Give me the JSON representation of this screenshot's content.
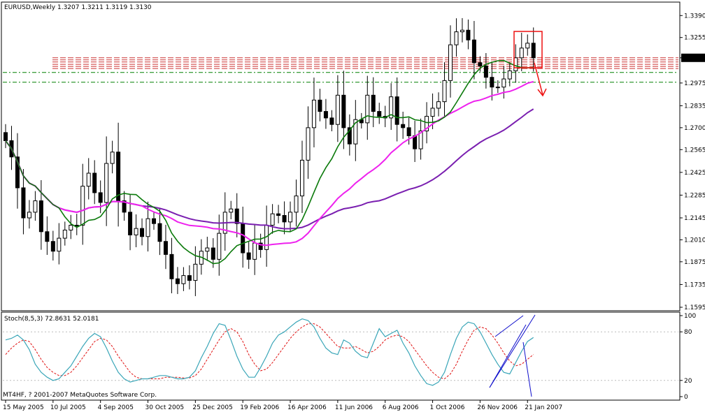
{
  "header": {
    "symbol_timeframe": "EURUSD,Weekly",
    "ohlc": "1.3207 1.3211 1.3119 1.3130"
  },
  "price_axis": {
    "ticks": [
      "1.3390",
      "1.3255",
      "1.3130",
      "1.2975",
      "1.2835",
      "1.2700",
      "1.2565",
      "1.2425",
      "1.2285",
      "1.2145",
      "1.2010",
      "1.1875",
      "1.1735",
      "1.1595"
    ],
    "current_price": "1.3130"
  },
  "stoch_panel": {
    "label": "Stoch(8,5,3) 72.8631 52.0181",
    "ticks": [
      "100",
      "80",
      "20",
      "0"
    ],
    "copyright": "MT4HF, ? 2001-2007 MetaQuotes Software Corp."
  },
  "time_axis": {
    "labels": [
      "15 May 2005",
      "10 Jul 2005",
      "4 Sep 2005",
      "30 Oct 2005",
      "25 Dec 2005",
      "19 Feb 2006",
      "16 Apr 2006",
      "11 Jun 2006",
      "6 Aug 2006",
      "1 Oct 2006",
      "26 Nov 2006",
      "21 Jan 2007"
    ]
  },
  "colors": {
    "background": "#ffffff",
    "up_candle": "#ffffff",
    "down_candle": "#000000",
    "ma_fast": "#0b7a0b",
    "ma_mid": "#ee22ee",
    "ma_slow": "#7a1fb0",
    "stoch_main": "#3aa6b8",
    "stoch_signal": "#e01010",
    "hline_green": "#008000",
    "hline_red": "#cc3333",
    "annotation": "#ee1111",
    "trendline": "#1010cc"
  },
  "chart_data": {
    "type": "candlestick",
    "timeframe": "Weekly",
    "symbol": "EURUSD",
    "ylim": [
      1.1595,
      1.346
    ],
    "x_tick_labels": [
      "15 May 2005",
      "10 Jul 2005",
      "4 Sep 2005",
      "30 Oct 2005",
      "25 Dec 2005",
      "19 Feb 2006",
      "16 Apr 2006",
      "11 Jun 2006",
      "6 Aug 2006",
      "1 Oct 2006",
      "26 Nov 2006",
      "21 Jan 2007"
    ],
    "x_tick_bar_index": [
      0,
      8,
      16,
      24,
      32,
      40,
      48,
      56,
      64,
      72,
      80,
      88
    ],
    "closes": [
      1.262,
      1.252,
      1.233,
      1.2145,
      1.218,
      1.225,
      1.206,
      1.2,
      1.194,
      1.202,
      1.207,
      1.21,
      1.21,
      1.234,
      1.242,
      1.23,
      1.224,
      1.248,
      1.255,
      1.225,
      1.218,
      1.204,
      1.208,
      1.203,
      1.214,
      1.211,
      1.2,
      1.192,
      1.177,
      1.174,
      1.179,
      1.176,
      1.186,
      1.194,
      1.196,
      1.189,
      1.205,
      1.218,
      1.22,
      1.211,
      1.193,
      1.189,
      1.199,
      1.195,
      1.21,
      1.217,
      1.216,
      1.212,
      1.218,
      1.228,
      1.25,
      1.27,
      1.287,
      1.28,
      1.276,
      1.272,
      1.29,
      1.27,
      1.26,
      1.275,
      1.273,
      1.29,
      1.28,
      1.277,
      1.276,
      1.289,
      1.272,
      1.27,
      1.265,
      1.257,
      1.268,
      1.277,
      1.282,
      1.286,
      1.299,
      1.321,
      1.329,
      1.33,
      1.324,
      1.31,
      1.308,
      1.301,
      1.295,
      1.295,
      1.3,
      1.305,
      1.313,
      1.319,
      1.322,
      1.313
    ],
    "moving_averages": [
      {
        "color": "#0b7a0b",
        "role": "fast"
      },
      {
        "color": "#ee22ee",
        "role": "mid"
      },
      {
        "color": "#7a1fb0",
        "role": "slow"
      }
    ],
    "horizontal_lines": [
      1.313,
      1.309,
      1.304,
      1.298
    ],
    "stochastic": {
      "params": "8,5,3",
      "main_last": 72.8631,
      "signal_last": 52.0181,
      "ylim": [
        0,
        100
      ],
      "levels": [
        20,
        80
      ],
      "main": [
        70,
        72,
        76,
        70,
        58,
        40,
        30,
        24,
        20,
        22,
        30,
        38,
        50,
        62,
        72,
        78,
        74,
        60,
        44,
        30,
        22,
        18,
        20,
        22,
        22,
        24,
        26,
        26,
        24,
        22,
        22,
        24,
        32,
        48,
        62,
        78,
        90,
        88,
        70,
        50,
        34,
        24,
        24,
        36,
        50,
        66,
        76,
        80,
        86,
        92,
        96,
        94,
        86,
        72,
        60,
        54,
        52,
        70,
        66,
        56,
        50,
        48,
        66,
        84,
        74,
        78,
        82,
        66,
        54,
        38,
        26,
        16,
        14,
        18,
        30,
        52,
        72,
        86,
        92,
        90,
        80,
        66,
        52,
        40,
        30,
        28,
        42,
        56,
        68,
        73
      ],
      "signal": [
        52,
        60,
        66,
        70,
        68,
        58,
        46,
        36,
        30,
        26,
        26,
        30,
        38,
        48,
        58,
        68,
        72,
        70,
        62,
        50,
        40,
        30,
        24,
        22,
        22,
        22,
        22,
        24,
        24,
        24,
        23,
        23,
        26,
        34,
        46,
        58,
        70,
        80,
        84,
        80,
        68,
        52,
        40,
        32,
        34,
        42,
        52,
        62,
        72,
        80,
        86,
        90,
        90,
        86,
        78,
        70,
        62,
        60,
        60,
        62,
        58,
        54,
        56,
        62,
        70,
        74,
        76,
        74,
        68,
        58,
        48,
        38,
        30,
        24,
        22,
        28,
        40,
        56,
        70,
        82,
        86,
        84,
        76,
        66,
        54,
        44,
        38,
        40,
        46,
        52
      ]
    }
  }
}
